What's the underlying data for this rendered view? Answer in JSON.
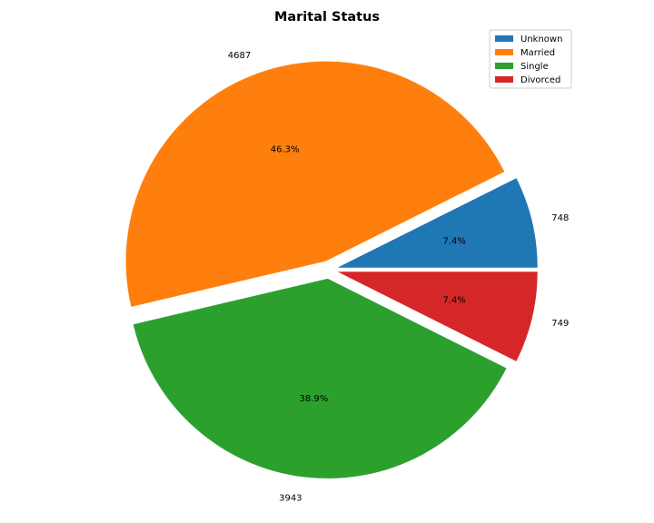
{
  "chart_data": {
    "type": "pie",
    "title": "Marital Status",
    "labels": [
      "Unknown",
      "Married",
      "Single",
      "Divorced"
    ],
    "values": [
      748,
      4687,
      3943,
      749
    ],
    "value_labels": [
      "748",
      "4687",
      "3943",
      "749"
    ],
    "percent_labels": [
      "7.4%",
      "46.3%",
      "38.9%",
      "7.4%"
    ],
    "colors": [
      "#1f77b4",
      "#ff7f0e",
      "#2ca02c",
      "#d62728"
    ],
    "explode": true,
    "legend_position": "top-right"
  }
}
